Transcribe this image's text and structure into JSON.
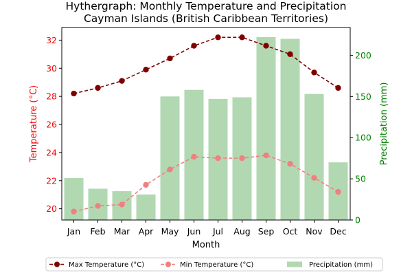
{
  "chart_data": {
    "type": "bar+line",
    "title_line1": "Hythergraph: Monthly Temperature and Precipitation",
    "title_line2": "Cayman Islands (British Caribbean Territories)",
    "xlabel": "Month",
    "ylabel_left": "Temperature (°C)",
    "ylabel_right": "Precipitation (mm)",
    "categories": [
      "Jan",
      "Feb",
      "Mar",
      "Apr",
      "May",
      "Jun",
      "Jul",
      "Aug",
      "Sep",
      "Oct",
      "Nov",
      "Dec"
    ],
    "ylim_left": [
      19.2,
      32.9
    ],
    "ylim_right": [
      0,
      233.7
    ],
    "yticks_left": [
      "20",
      "22",
      "24",
      "26",
      "28",
      "30",
      "32"
    ],
    "yticks_right": [
      "0",
      "50",
      "100",
      "150",
      "200"
    ],
    "grid": false,
    "legend_position": "bottom",
    "series": [
      {
        "name": "Max Temperature (°C)",
        "kind": "line",
        "axis": "left",
        "color": "#800000",
        "dashed": true,
        "values": [
          28.2,
          28.6,
          29.1,
          29.9,
          30.7,
          31.6,
          32.2,
          32.2,
          31.6,
          31.0,
          29.7,
          28.6
        ]
      },
      {
        "name": "Min Temperature (°C)",
        "kind": "line",
        "axis": "left",
        "color": "#f08080",
        "dashed": true,
        "values": [
          19.8,
          20.2,
          20.3,
          21.7,
          22.8,
          23.7,
          23.6,
          23.6,
          23.8,
          23.2,
          22.2,
          21.2
        ]
      },
      {
        "name": "Precipitation (mm)",
        "kind": "bar",
        "axis": "right",
        "color": "#b2d8b2",
        "values": [
          51,
          38,
          35,
          31,
          150,
          158,
          147,
          149,
          222,
          220,
          153,
          70
        ]
      }
    ],
    "colors": {
      "left_axis": "#ff0000",
      "right_axis": "#008000"
    }
  }
}
